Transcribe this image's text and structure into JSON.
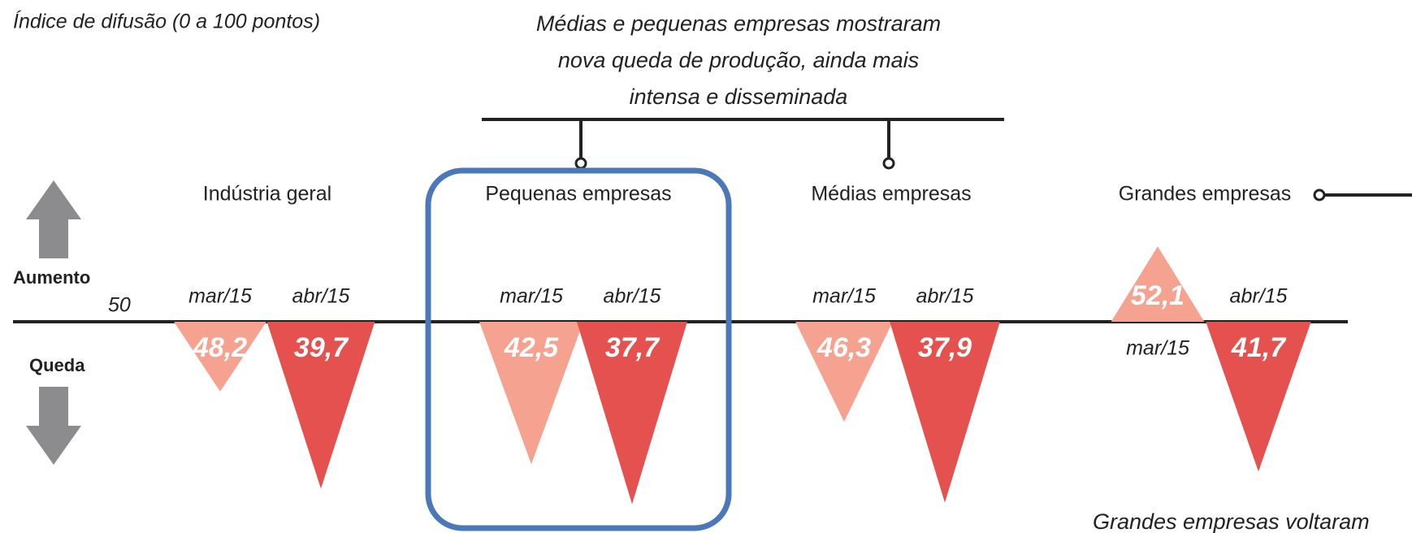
{
  "chart_data": {
    "type": "triangle",
    "title": "Índice de difusão (0 a 100 pontos)",
    "baseline": 50,
    "up_label": "Aumento",
    "down_label": "Queda",
    "categories": [
      "Indústria geral",
      "Pequenas empresas",
      "Médias empresas",
      "Grandes empresas"
    ],
    "series": [
      {
        "name": "mar/15",
        "color": "#f5a291",
        "values": [
          48.2,
          42.5,
          46.3,
          52.1
        ],
        "value_labels": [
          "48,2",
          "42,5",
          "46,3",
          "52,1"
        ]
      },
      {
        "name": "abr/15",
        "color": "#e4514e",
        "values": [
          39.7,
          37.7,
          37.9,
          41.7
        ],
        "value_labels": [
          "39,7",
          "37,7",
          "37,9",
          "41,7"
        ]
      }
    ],
    "annotations": [
      [
        "Médias e pequenas empresas mostraram",
        "nova queda de produção, ainda mais",
        "intensa e disseminada"
      ],
      [
        "Grandes empresas voltaram"
      ]
    ]
  }
}
